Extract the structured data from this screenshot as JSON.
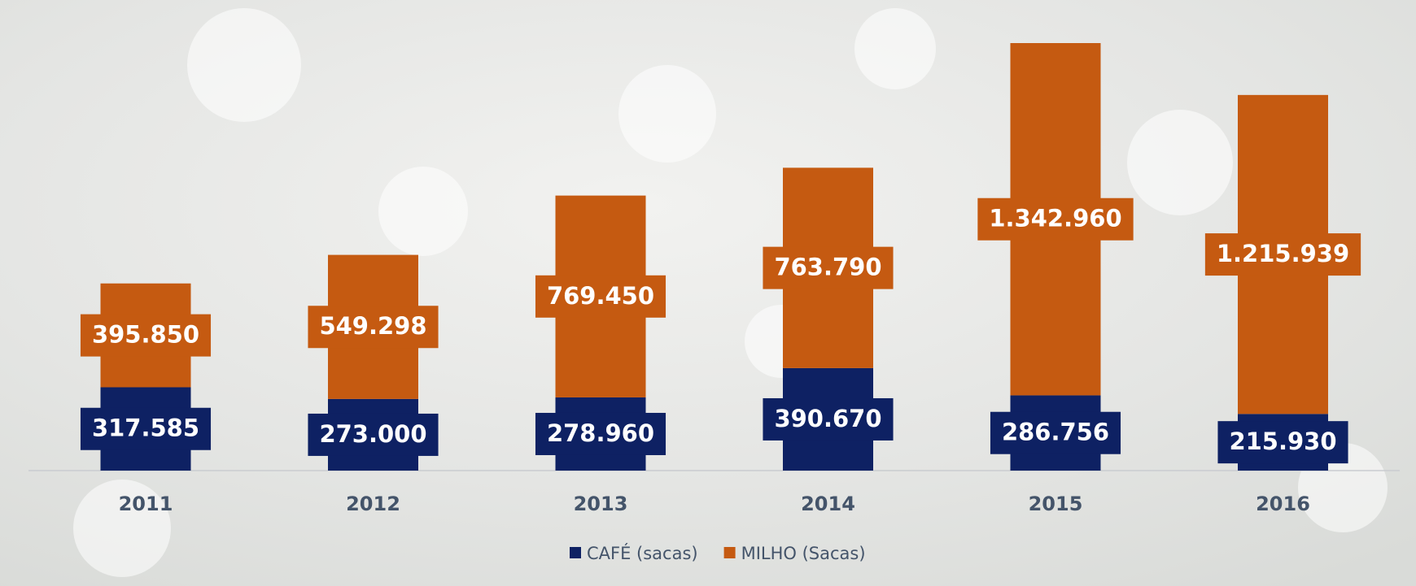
{
  "chart_data": {
    "type": "stacked-bar",
    "categories": [
      "2011",
      "2012",
      "2013",
      "2014",
      "2015",
      "2016"
    ],
    "series": [
      {
        "name": "CAFÉ (sacas)",
        "color": "#0e2163",
        "values": [
          317585,
          273000,
          278960,
          390670,
          286756,
          215930
        ],
        "value_labels": [
          "317.585",
          "273.000",
          "278.960",
          "390.670",
          "286.756",
          "215.930"
        ]
      },
      {
        "name": "MILHO (Sacas)",
        "color": "#c55a11",
        "values": [
          395850,
          549298,
          769450,
          763790,
          1342960,
          1215939
        ],
        "value_labels": [
          "395.850",
          "549.298",
          "769.450",
          "763.790",
          "1.342.960",
          "1.215.939"
        ]
      }
    ]
  }
}
